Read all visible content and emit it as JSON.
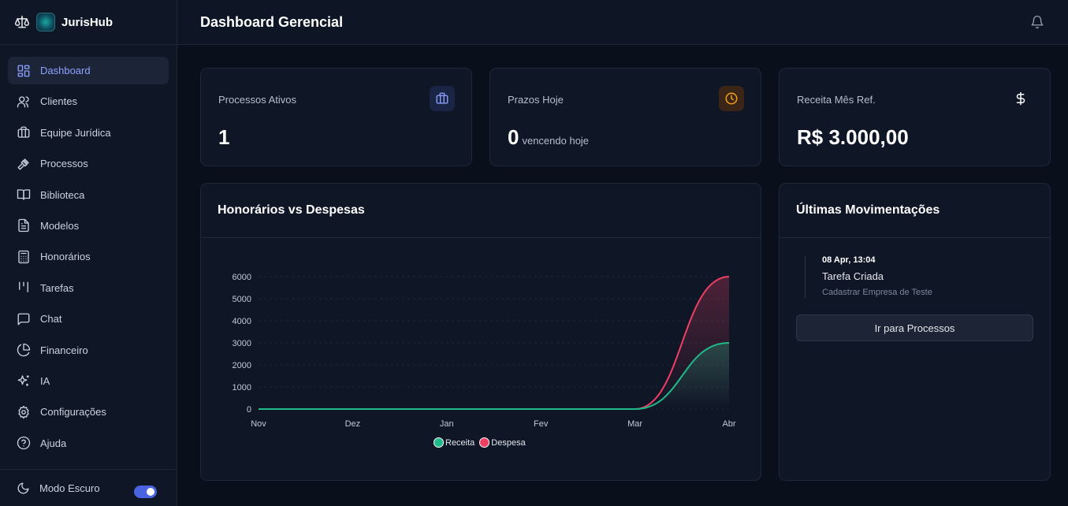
{
  "brand": {
    "name": "JurisHub"
  },
  "sidebar": {
    "items": [
      {
        "label": "Dashboard",
        "icon": "layout-grid-icon",
        "active": true
      },
      {
        "label": "Clientes",
        "icon": "users-icon"
      },
      {
        "label": "Equipe Jurídica",
        "icon": "briefcase-icon"
      },
      {
        "label": "Processos",
        "icon": "gavel-icon"
      },
      {
        "label": "Biblioteca",
        "icon": "book-icon"
      },
      {
        "label": "Modelos",
        "icon": "file-text-icon"
      },
      {
        "label": "Honorários",
        "icon": "calculator-icon"
      },
      {
        "label": "Tarefas",
        "icon": "columns-icon"
      },
      {
        "label": "Chat",
        "icon": "message-square-icon"
      },
      {
        "label": "Financeiro",
        "icon": "pie-chart-icon"
      },
      {
        "label": "IA",
        "icon": "sparkles-icon"
      },
      {
        "label": "Configurações",
        "icon": "gear-icon"
      },
      {
        "label": "Ajuda",
        "icon": "help-circle-icon"
      }
    ],
    "footer": {
      "label": "Modo Escuro",
      "toggle_on": true
    }
  },
  "header": {
    "title": "Dashboard Gerencial"
  },
  "stats": {
    "processos": {
      "label": "Processos Ativos",
      "value": "1"
    },
    "prazos": {
      "label": "Prazos Hoje",
      "value": "0",
      "sub": "vencendo hoje"
    },
    "receita": {
      "label": "Receita Mês Ref.",
      "value": "R$ 3.000,00"
    }
  },
  "chart_panel": {
    "title": "Honorários vs Despesas"
  },
  "chart_data": {
    "type": "area",
    "categories": [
      "Nov",
      "Dez",
      "Jan",
      "Fev",
      "Mar",
      "Abr"
    ],
    "series": [
      {
        "name": "Receita",
        "values": [
          0,
          0,
          0,
          0,
          0,
          3000
        ],
        "color": "#1fb98a"
      },
      {
        "name": "Despesa",
        "values": [
          0,
          0,
          0,
          0,
          0,
          6000
        ],
        "color": "#ee3f64"
      }
    ],
    "yticks": [
      "0",
      "1000",
      "2000",
      "3000",
      "4000",
      "5000",
      "6000"
    ],
    "ylim": [
      0,
      6000
    ],
    "grid": true,
    "legend": "bottom"
  },
  "movements": {
    "title": "Últimas Movimentações",
    "items": [
      {
        "date": "08 Apr, 13:04",
        "title": "Tarefa Criada",
        "desc": "Cadastrar Empresa de Teste"
      }
    ],
    "button_label": "Ir para Processos"
  },
  "colors": {
    "accent": "#8ea2ff",
    "receita": "#1fb98a",
    "despesa": "#ee3f64",
    "clock_icon": "#f59e0b"
  }
}
